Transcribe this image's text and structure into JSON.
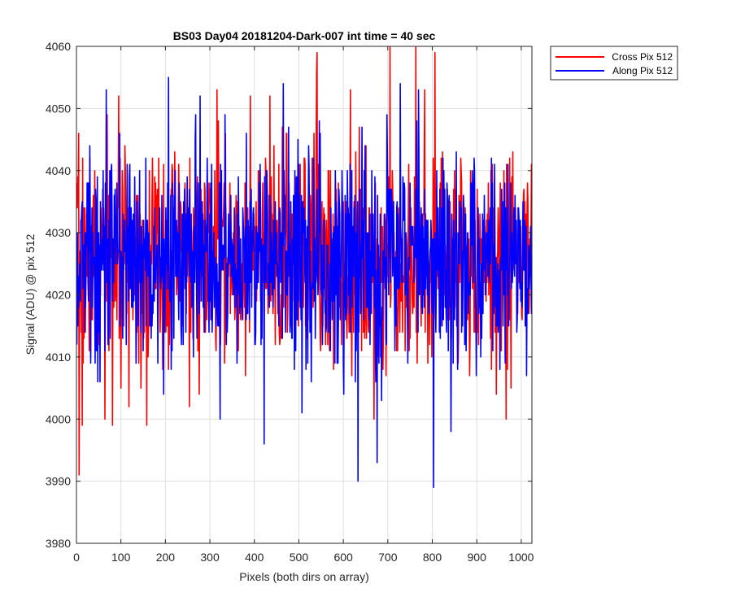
{
  "chart_data": {
    "type": "line",
    "title": "BS03 Day04 20181204-Dark-007 int time = 40 sec",
    "xlabel": "Pixels (both dirs on array)",
    "ylabel": "Signal (ADU) @ pix 512",
    "xlim": [
      0,
      1024
    ],
    "ylim": [
      3980,
      4060
    ],
    "xticks": [
      0,
      100,
      200,
      300,
      400,
      500,
      600,
      700,
      800,
      900,
      1000
    ],
    "yticks": [
      3980,
      3990,
      4000,
      4010,
      4020,
      4030,
      4040,
      4050,
      4060
    ],
    "grid": true,
    "legend_position": "outside-top-right",
    "series": [
      {
        "name": "Cross Pix 512",
        "color": "#ff0000",
        "noise_model": {
          "n_points": 1024,
          "mean": 4026,
          "std": 8.5,
          "min": 3991,
          "max": 4060,
          "seed": 7
        },
        "peaks": [
          {
            "x": 5,
            "y": 3991
          },
          {
            "x": 12,
            "y": 3999
          },
          {
            "x": 63,
            "y": 4000
          },
          {
            "x": 80,
            "y": 3999
          },
          {
            "x": 157,
            "y": 3999
          },
          {
            "x": 315,
            "y": 4053
          },
          {
            "x": 538,
            "y": 4046
          },
          {
            "x": 539,
            "y": 4056
          },
          {
            "x": 540,
            "y": 4026
          },
          {
            "x": 540,
            "y": 4059
          },
          {
            "x": 615,
            "y": 4053
          },
          {
            "x": 704,
            "y": 4060
          },
          {
            "x": 762,
            "y": 4060
          },
          {
            "x": 805,
            "y": 4059
          },
          {
            "x": 965,
            "y": 4000
          },
          {
            "x": 1022,
            "y": 4041
          }
        ]
      },
      {
        "name": "Along Pix 512",
        "color": "#0000ff",
        "noise_model": {
          "n_points": 1024,
          "mean": 4026,
          "std": 8.5,
          "min": 3989,
          "max": 4055,
          "seed": 13
        },
        "peaks": [
          {
            "x": 66,
            "y": 4053
          },
          {
            "x": 206,
            "y": 4055
          },
          {
            "x": 322,
            "y": 4000
          },
          {
            "x": 421,
            "y": 3996
          },
          {
            "x": 464,
            "y": 4054
          },
          {
            "x": 632,
            "y": 3990
          },
          {
            "x": 675,
            "y": 3993
          },
          {
            "x": 727,
            "y": 4054
          },
          {
            "x": 768,
            "y": 4053
          },
          {
            "x": 802,
            "y": 3989
          }
        ]
      }
    ]
  }
}
